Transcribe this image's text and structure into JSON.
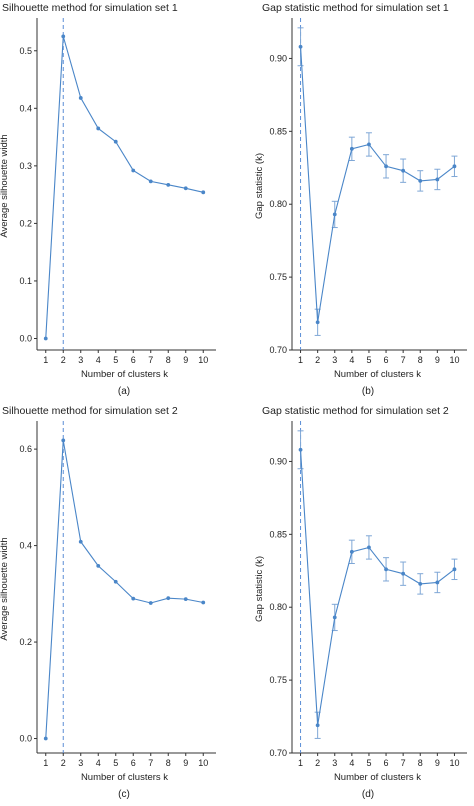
{
  "chart_data": [
    {
      "panel": "(a)",
      "type": "line",
      "title": "Silhouette method for simulation set 1",
      "xlabel": "Number of clusters k",
      "ylabel": "Average silhouette width",
      "x": [
        1,
        2,
        3,
        4,
        5,
        6,
        7,
        8,
        9,
        10
      ],
      "y": [
        0.0,
        0.525,
        0.418,
        0.365,
        0.342,
        0.292,
        0.273,
        0.267,
        0.261,
        0.254
      ],
      "ylim": [
        -0.02,
        0.55
      ],
      "yticks": [
        "0.0",
        "0.1",
        "0.2",
        "0.3",
        "0.4",
        "0.5"
      ],
      "ytick_values": [
        0.0,
        0.1,
        0.2,
        0.3,
        0.4,
        0.5
      ],
      "optimal_k": 2,
      "color": "#4a86c8",
      "vline_color": "#5b8ed6"
    },
    {
      "panel": "(b)",
      "type": "line",
      "title": "Gap statistic method for simulation set 1",
      "xlabel": "Number of clusters k",
      "ylabel": "Gap statistic (k)",
      "x": [
        1,
        2,
        3,
        4,
        5,
        6,
        7,
        8,
        9,
        10
      ],
      "y": [
        0.908,
        0.719,
        0.793,
        0.838,
        0.841,
        0.826,
        0.823,
        0.816,
        0.817,
        0.826
      ],
      "err": [
        0.013,
        0.009,
        0.009,
        0.008,
        0.008,
        0.008,
        0.008,
        0.007,
        0.007,
        0.007
      ],
      "ylim": [
        0.7,
        0.925
      ],
      "yticks": [
        "0.70",
        "0.75",
        "0.80",
        "0.85",
        "0.90"
      ],
      "ytick_values": [
        0.7,
        0.75,
        0.8,
        0.85,
        0.9
      ],
      "optimal_k": 1,
      "color": "#4a86c8",
      "vline_color": "#5b8ed6"
    },
    {
      "panel": "(c)",
      "type": "line",
      "title": "Silhouette method for simulation set 2",
      "xlabel": "Number of clusters k",
      "ylabel": "Average silhouette width",
      "x": [
        1,
        2,
        3,
        4,
        5,
        6,
        7,
        8,
        9,
        10
      ],
      "y": [
        0.0,
        0.618,
        0.408,
        0.358,
        0.325,
        0.29,
        0.281,
        0.291,
        0.289,
        0.282
      ],
      "ylim": [
        -0.03,
        0.65
      ],
      "yticks": [
        "0.0",
        "0.2",
        "0.4",
        "0.6"
      ],
      "ytick_values": [
        0.0,
        0.2,
        0.4,
        0.6
      ],
      "optimal_k": 2,
      "color": "#4a86c8",
      "vline_color": "#5b8ed6"
    },
    {
      "panel": "(d)",
      "type": "line",
      "title": "Gap statistic method for simulation set 2",
      "xlabel": "Number of clusters k",
      "ylabel": "Gap statistic (k)",
      "x": [
        1,
        2,
        3,
        4,
        5,
        6,
        7,
        8,
        9,
        10
      ],
      "y": [
        0.908,
        0.719,
        0.793,
        0.838,
        0.841,
        0.826,
        0.823,
        0.816,
        0.817,
        0.826
      ],
      "err": [
        0.013,
        0.009,
        0.009,
        0.008,
        0.008,
        0.008,
        0.008,
        0.007,
        0.007,
        0.007
      ],
      "ylim": [
        0.7,
        0.925
      ],
      "yticks": [
        "0.70",
        "0.75",
        "0.80",
        "0.85",
        "0.90"
      ],
      "ytick_values": [
        0.7,
        0.75,
        0.8,
        0.85,
        0.9
      ],
      "optimal_k": 1,
      "color": "#4a86c8",
      "vline_color": "#5b8ed6"
    }
  ],
  "captions": [
    "(a)",
    "(b)",
    "(c)",
    "(d)"
  ]
}
